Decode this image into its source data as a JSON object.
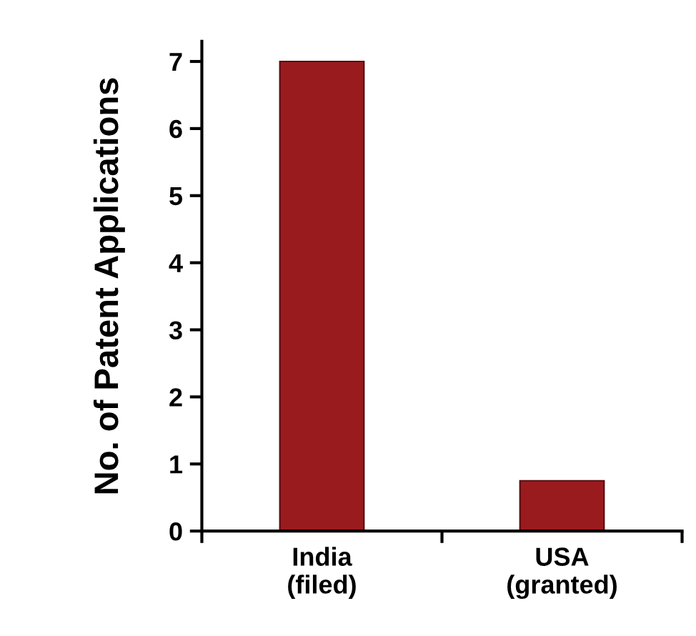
{
  "chart_data": {
    "type": "bar",
    "ylabel": "No. of Patent Applications",
    "categories": [
      "India\n(filed)",
      "USA\n(granted)"
    ],
    "values": [
      7,
      0.75
    ],
    "color": "#9a1b1e",
    "ylim": [
      0,
      7.3
    ],
    "yticks": [
      0,
      1,
      2,
      3,
      4,
      5,
      6,
      7
    ],
    "grid": false
  }
}
